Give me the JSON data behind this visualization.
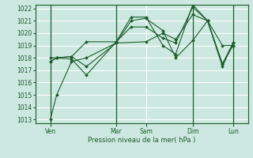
{
  "xlabel": "Pression niveau de la mer( hPa )",
  "bg_color": "#cce8e0",
  "grid_color": "#ffffff",
  "line_color": "#1a5c2a",
  "ylim": [
    1013,
    1022
  ],
  "yticks": [
    1013,
    1014,
    1015,
    1016,
    1017,
    1018,
    1019,
    1020,
    1021,
    1022
  ],
  "day_positions": [
    0.07,
    0.38,
    0.52,
    0.74,
    0.93
  ],
  "day_labels": [
    "Ven",
    "Mar",
    "Sam",
    "Dim",
    "Lun"
  ],
  "vline_x": [
    0.07,
    0.38,
    0.74,
    0.93
  ],
  "series": [
    {
      "x": [
        0.07,
        0.1,
        0.17,
        0.24,
        0.38,
        0.52,
        0.6,
        0.66,
        0.74,
        0.81,
        0.88,
        0.93
      ],
      "y": [
        1013.0,
        1015.0,
        1017.7,
        1018.0,
        1019.2,
        1019.3,
        1020.0,
        1019.5,
        1021.5,
        1021.0,
        1019.0,
        1019.0
      ]
    },
    {
      "x": [
        0.07,
        0.1,
        0.17,
        0.24,
        0.38,
        0.45,
        0.52,
        0.6,
        0.66,
        0.74,
        0.81,
        0.88,
        0.93
      ],
      "y": [
        1017.7,
        1018.0,
        1017.9,
        1016.6,
        1019.3,
        1021.3,
        1021.3,
        1019.0,
        1018.3,
        1022.3,
        1021.0,
        1017.3,
        1019.2
      ]
    },
    {
      "x": [
        0.07,
        0.1,
        0.17,
        0.24,
        0.38,
        0.45,
        0.52,
        0.6,
        0.66,
        0.74,
        0.81,
        0.88,
        0.93
      ],
      "y": [
        1018.0,
        1018.0,
        1018.1,
        1017.3,
        1019.2,
        1021.0,
        1021.2,
        1020.2,
        1018.0,
        1019.4,
        1021.0,
        1017.5,
        1019.0
      ]
    },
    {
      "x": [
        0.07,
        0.1,
        0.17,
        0.24,
        0.38,
        0.45,
        0.52,
        0.6,
        0.66,
        0.74,
        0.81,
        0.88,
        0.93
      ],
      "y": [
        1017.7,
        1018.0,
        1018.1,
        1019.3,
        1019.3,
        1020.5,
        1020.5,
        1019.6,
        1019.2,
        1022.1,
        1021.0,
        1017.5,
        1019.2
      ]
    }
  ]
}
